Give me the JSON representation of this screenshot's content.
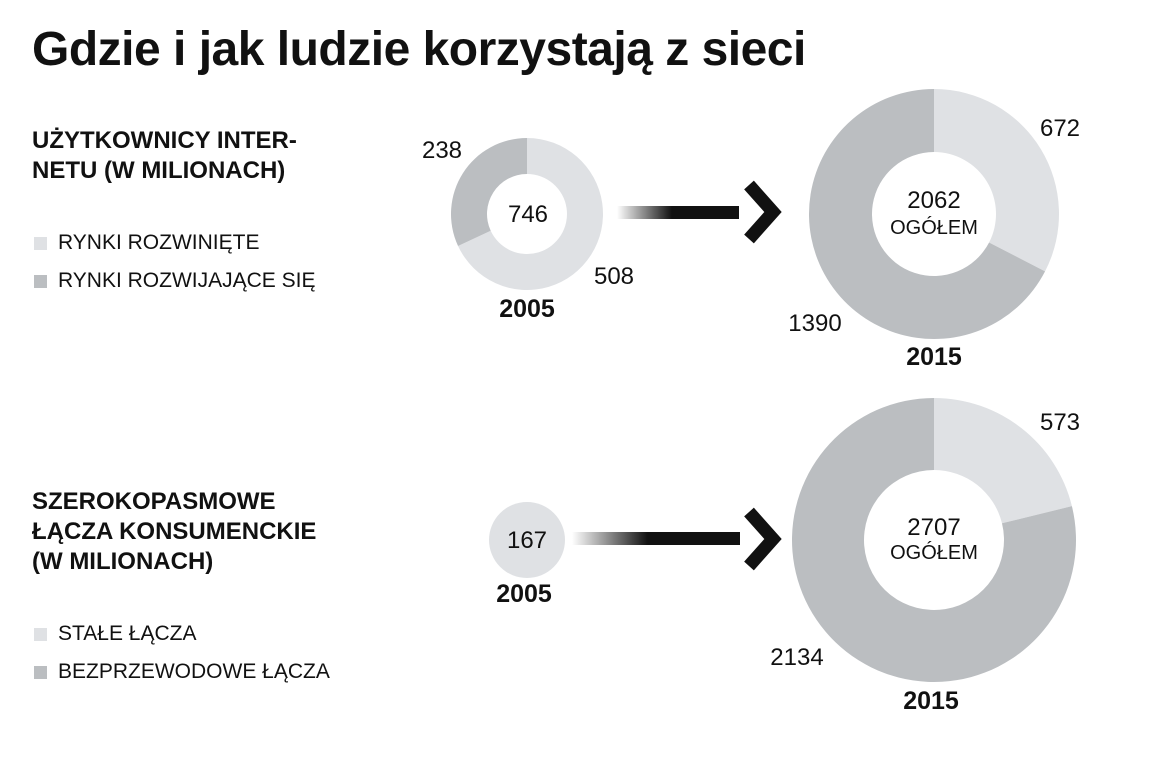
{
  "title": "Gdzie i jak ludzie korzystają z sieci",
  "colors": {
    "light": "#dfe1e4",
    "dark": "#bbbec1",
    "text": "#111111"
  },
  "sections": [
    {
      "heading_lines": [
        "UŻYTKOWNICY INTER-",
        "NETU (W MILIONACH)"
      ],
      "legend": [
        {
          "label": "RYNKI ROZWINIĘTE",
          "color": "#dfe1e4"
        },
        {
          "label": "RYNKI ROZWIJAJĄCE SIĘ",
          "color": "#bbbec1"
        }
      ]
    },
    {
      "heading_lines": [
        "SZEROKOPASMOWE",
        "ŁĄCZA KONSUMENCKIE",
        "(W MILIONACH)"
      ],
      "legend": [
        {
          "label": "STAŁE ŁĄCZA",
          "color": "#dfe1e4"
        },
        {
          "label": "BEZPRZEWODOWE ŁĄCZA",
          "color": "#bbbec1"
        }
      ]
    }
  ],
  "chart_data": [
    {
      "type": "pie",
      "title": "UŻYTKOWNICY INTERNETU (W MILIONACH)",
      "year": "2005",
      "center_label": "746",
      "slices": [
        {
          "label": "RYNKI ROZWINIĘTE",
          "value": 508,
          "value_label": "508",
          "color": "#dfe1e4"
        },
        {
          "label": "RYNKI ROZWIJAJĄCE SIĘ",
          "value": 238,
          "value_label": "238",
          "color": "#bbbec1"
        }
      ]
    },
    {
      "type": "pie",
      "title": "UŻYTKOWNICY INTERNETU (W MILIONACH)",
      "year": "2015",
      "center_label": "2062",
      "center_sublabel": "OGÓŁEM",
      "slices": [
        {
          "label": "RYNKI ROZWINIĘTE",
          "value": 672,
          "value_label": "672",
          "color": "#dfe1e4"
        },
        {
          "label": "RYNKI ROZWIJAJĄCE SIĘ",
          "value": 1390,
          "value_label": "1390",
          "color": "#bbbec1"
        }
      ]
    },
    {
      "type": "pie",
      "title": "SZEROKOPASMOWE ŁĄCZA KONSUMENCKIE (W MILIONACH)",
      "year": "2005",
      "center_label": "167",
      "slices": [
        {
          "label": "STAŁE ŁĄCZA",
          "value": 167,
          "value_label": "",
          "color": "#dfe1e4"
        }
      ]
    },
    {
      "type": "pie",
      "title": "SZEROKOPASMOWE ŁĄCZA KONSUMENCKIE (W MILIONACH)",
      "year": "2015",
      "center_label": "2707",
      "center_sublabel": "OGÓŁEM",
      "slices": [
        {
          "label": "STAŁE ŁĄCZA",
          "value": 573,
          "value_label": "573",
          "color": "#dfe1e4"
        },
        {
          "label": "BEZPRZEWODOWE ŁĄCZA",
          "value": 2134,
          "value_label": "2134",
          "color": "#bbbec1"
        }
      ]
    }
  ]
}
